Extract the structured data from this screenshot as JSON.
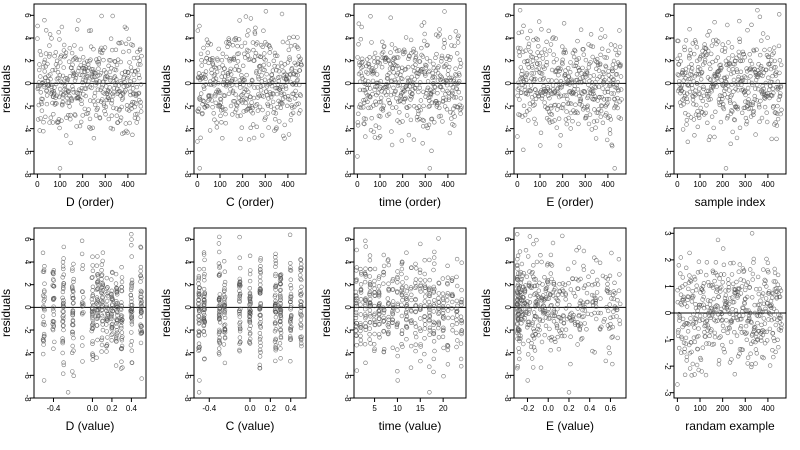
{
  "colors": {
    "points": "#555555",
    "frame": "#000000",
    "zero_line": "#000000",
    "background": "#ffffff"
  },
  "chart_data": [
    {
      "type": "scatter",
      "xlabel": "D (order)",
      "ylabel": "residuals",
      "xlim": [
        -15,
        480
      ],
      "ylim": [
        -8,
        7
      ],
      "xticks": [
        0,
        100,
        200,
        300,
        400
      ],
      "xtick_labels": [
        "0",
        "100",
        "200",
        "300",
        "400"
      ],
      "yticks": [
        -8,
        -6,
        -4,
        -2,
        0,
        2,
        4,
        6
      ],
      "ytick_labels": [
        "-8",
        "-6",
        "-4",
        "-2",
        "0",
        "2",
        "4",
        "6"
      ],
      "hline": 0,
      "grid": false,
      "points": {
        "n": 460,
        "x_kind": "index",
        "x_range": [
          0,
          460
        ],
        "y_sd": 2.2,
        "y_mean": 0,
        "seed": 11,
        "outliers": [
          [
            100,
            -7.5
          ]
        ]
      }
    },
    {
      "type": "scatter",
      "xlabel": "C (order)",
      "ylabel": "residuals",
      "xlim": [
        -15,
        480
      ],
      "ylim": [
        -8,
        7
      ],
      "xticks": [
        0,
        100,
        200,
        300,
        400
      ],
      "xtick_labels": [
        "0",
        "100",
        "200",
        "300",
        "400"
      ],
      "yticks": [
        -8,
        -6,
        -4,
        -2,
        0,
        2,
        4,
        6
      ],
      "ytick_labels": [
        "-8",
        "-6",
        "-4",
        "-2",
        "0",
        "2",
        "4",
        "6"
      ],
      "hline": 0,
      "grid": false,
      "points": {
        "n": 460,
        "x_kind": "index",
        "x_range": [
          0,
          460
        ],
        "y_sd": 2.2,
        "y_mean": 0,
        "seed": 23,
        "outliers": [
          [
            10,
            -7.5
          ]
        ]
      }
    },
    {
      "type": "scatter",
      "xlabel": "time (order)",
      "ylabel": "residuals",
      "xlim": [
        -15,
        480
      ],
      "ylim": [
        -8,
        7
      ],
      "xticks": [
        0,
        100,
        200,
        300,
        400
      ],
      "xtick_labels": [
        "0",
        "100",
        "200",
        "300",
        "400"
      ],
      "yticks": [
        -8,
        -6,
        -4,
        -2,
        0,
        2,
        4,
        6
      ],
      "ytick_labels": [
        "-8",
        "-6",
        "-4",
        "-2",
        "0",
        "2",
        "4",
        "6"
      ],
      "hline": 0,
      "grid": false,
      "points": {
        "n": 460,
        "x_kind": "index",
        "x_range": [
          0,
          460
        ],
        "y_sd": 2.2,
        "y_mean": 0,
        "seed": 37,
        "outliers": [
          [
            320,
            -7.5
          ]
        ]
      }
    },
    {
      "type": "scatter",
      "xlabel": "E (order)",
      "ylabel": "residuals",
      "xlim": [
        -15,
        480
      ],
      "ylim": [
        -8,
        7
      ],
      "xticks": [
        0,
        100,
        200,
        300,
        400
      ],
      "xtick_labels": [
        "0",
        "100",
        "200",
        "300",
        "400"
      ],
      "yticks": [
        -8,
        -6,
        -4,
        -2,
        0,
        2,
        4,
        6
      ],
      "ytick_labels": [
        "-8",
        "-6",
        "-4",
        "-2",
        "0",
        "2",
        "4",
        "6"
      ],
      "hline": 0,
      "grid": false,
      "points": {
        "n": 460,
        "x_kind": "index",
        "x_range": [
          0,
          460
        ],
        "y_sd": 2.2,
        "y_mean": 0,
        "seed": 41,
        "outliers": [
          [
            430,
            -7.5
          ]
        ]
      }
    },
    {
      "type": "scatter",
      "xlabel": "sample index",
      "ylabel": "",
      "xlim": [
        -15,
        480
      ],
      "ylim": [
        -8,
        7
      ],
      "xticks": [
        0,
        100,
        200,
        300,
        400
      ],
      "xtick_labels": [
        "0",
        "100",
        "200",
        "300",
        "400"
      ],
      "yticks": [
        -8,
        -6,
        -4,
        -2,
        0,
        2,
        4,
        6
      ],
      "ytick_labels": [
        "-8",
        "-6",
        "-4",
        "-2",
        "0",
        "2",
        "4",
        "6"
      ],
      "hline": 0,
      "grid": false,
      "points": {
        "n": 460,
        "x_kind": "index",
        "x_range": [
          0,
          460
        ],
        "y_sd": 2.2,
        "y_mean": 0,
        "seed": 53,
        "outliers": [
          [
            215,
            -7.5
          ]
        ]
      }
    },
    {
      "type": "scatter",
      "xlabel": "D (value)",
      "ylabel": "residuals",
      "xlim": [
        -0.6,
        0.55
      ],
      "ylim": [
        -8,
        7
      ],
      "xticks": [
        -0.4,
        0.0,
        0.2,
        0.4
      ],
      "xtick_labels": [
        "-0.4",
        "0.0",
        "0.2",
        "0.4"
      ],
      "yticks": [
        -8,
        -6,
        -4,
        -2,
        0,
        2,
        4,
        6
      ],
      "ytick_labels": [
        "-8",
        "-6",
        "-4",
        "-2",
        "0",
        "2",
        "4",
        "6"
      ],
      "hline": 0,
      "grid": false,
      "points": {
        "n": 460,
        "x_kind": "discrete",
        "x_levels": [
          -0.5,
          -0.4,
          -0.3,
          -0.2,
          -0.1,
          0.0,
          0.05,
          0.1,
          0.15,
          0.2,
          0.25,
          0.3,
          0.4,
          0.5
        ],
        "x_jitter": 0.008,
        "y_sd": 2.2,
        "y_mean": 0,
        "seed": 67,
        "outliers": [
          [
            -0.25,
            -7.5
          ]
        ]
      }
    },
    {
      "type": "scatter",
      "xlabel": "C (value)",
      "ylabel": "residuals",
      "xlim": [
        -0.55,
        0.55
      ],
      "ylim": [
        -8,
        7
      ],
      "xticks": [
        -0.4,
        0.0,
        0.2,
        0.4
      ],
      "xtick_labels": [
        "-0.4",
        "0.0",
        "0.2",
        "0.4"
      ],
      "yticks": [
        -8,
        -6,
        -4,
        -2,
        0,
        2,
        4,
        6
      ],
      "ytick_labels": [
        "-8",
        "-6",
        "-4",
        "-2",
        "0",
        "2",
        "4",
        "6"
      ],
      "hline": 0,
      "grid": false,
      "points": {
        "n": 460,
        "x_kind": "discrete",
        "x_levels": [
          -0.5,
          -0.45,
          -0.3,
          -0.25,
          -0.1,
          0.0,
          0.1,
          0.25,
          0.3,
          0.4,
          0.5
        ],
        "x_jitter": 0.006,
        "y_sd": 2.2,
        "y_mean": 0,
        "seed": 79,
        "outliers": [
          [
            -0.5,
            -7.5
          ]
        ]
      }
    },
    {
      "type": "scatter",
      "xlabel": "time (value)",
      "ylabel": "residuals",
      "xlim": [
        0.5,
        25
      ],
      "ylim": [
        -8,
        7
      ],
      "xticks": [
        5,
        10,
        15,
        20
      ],
      "xtick_labels": [
        "5",
        "10",
        "15",
        "20"
      ],
      "yticks": [
        -8,
        -6,
        -4,
        -2,
        0,
        2,
        4,
        6
      ],
      "ytick_labels": [
        "-8",
        "-6",
        "-4",
        "-2",
        "0",
        "2",
        "4",
        "6"
      ],
      "hline": 0,
      "grid": false,
      "points": {
        "n": 460,
        "x_kind": "discrete",
        "x_levels": [
          1,
          2,
          3,
          4,
          5,
          6,
          7,
          8,
          9,
          10,
          11,
          12,
          13,
          14,
          15,
          16,
          17,
          18,
          19,
          20,
          21,
          22,
          23,
          24
        ],
        "x_jitter": 0.12,
        "y_sd": 2.2,
        "y_mean": 0,
        "seed": 83,
        "outliers": [
          [
            17,
            -7.5
          ]
        ]
      }
    },
    {
      "type": "scatter",
      "xlabel": "E (value)",
      "ylabel": "residuals",
      "xlim": [
        -0.33,
        0.75
      ],
      "ylim": [
        -8,
        7
      ],
      "xticks": [
        -0.2,
        0.0,
        0.2,
        0.4,
        0.6
      ],
      "xtick_labels": [
        "-0.2",
        "0.0",
        "0.2",
        "0.4",
        "0.6"
      ],
      "yticks": [
        -8,
        -6,
        -4,
        -2,
        0,
        2,
        4,
        6
      ],
      "ytick_labels": [
        "-8",
        "-6",
        "-4",
        "-2",
        "0",
        "2",
        "4",
        "6"
      ],
      "hline": 0,
      "grid": false,
      "points": {
        "n": 460,
        "x_kind": "skewed",
        "x_range": [
          -0.3,
          0.7
        ],
        "y_sd": 2.2,
        "y_mean": 0,
        "seed": 97,
        "outliers": [
          [
            0.2,
            -7.5
          ]
        ]
      }
    },
    {
      "type": "scatter",
      "xlabel": "randam example",
      "ylabel": "",
      "xlim": [
        -15,
        480
      ],
      "ylim": [
        -3.2,
        3.2
      ],
      "xticks": [
        0,
        100,
        200,
        300,
        400
      ],
      "xtick_labels": [
        "0",
        "100",
        "200",
        "300",
        "400"
      ],
      "yticks": [
        -3,
        -2,
        -1,
        0,
        1,
        2,
        3
      ],
      "ytick_labels": [
        "-3",
        "-2",
        "-1",
        "0",
        "1",
        "2",
        "3"
      ],
      "hline": 0,
      "grid": false,
      "points": {
        "n": 460,
        "x_kind": "index",
        "x_range": [
          0,
          460
        ],
        "y_sd": 1.0,
        "y_mean": 0,
        "seed": 101,
        "outliers": [
          [
            330,
            3.0
          ]
        ]
      }
    }
  ]
}
